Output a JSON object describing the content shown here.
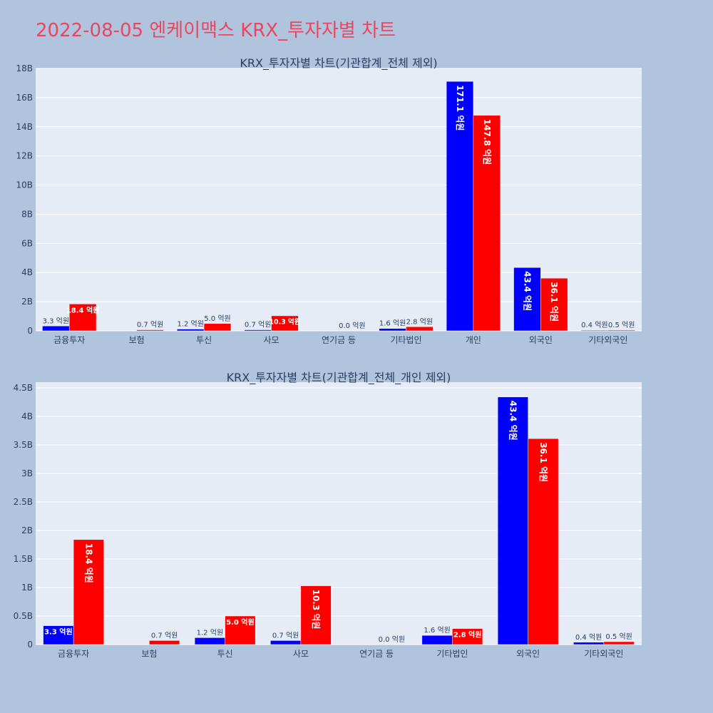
{
  "page": {
    "title": "2022-08-05 엔케이맥스 KRX_투자자별 차트",
    "background": "#b0c4de",
    "title_color": "#e8475f"
  },
  "chart_data": [
    {
      "type": "bar",
      "title": "KRX_투자자별 차트(기관합계_전체 제외)",
      "categories": [
        "금융투자",
        "보험",
        "투신",
        "사모",
        "연기금 등",
        "기타법인",
        "개인",
        "외국인",
        "기타외국인"
      ],
      "ylim": [
        0,
        18000000000
      ],
      "yticks": [
        0,
        2000000000,
        4000000000,
        6000000000,
        8000000000,
        10000000000,
        12000000000,
        14000000000,
        16000000000,
        18000000000
      ],
      "ytick_labels": [
        "0",
        "2B",
        "4B",
        "6B",
        "8B",
        "10B",
        "12B",
        "14B",
        "16B",
        "18B"
      ],
      "grid": true,
      "series": [
        {
          "color": "#0000ff",
          "values": [
            330000000,
            0,
            120000000,
            70000000,
            0,
            160000000,
            17110000000,
            4340000000,
            40000000
          ],
          "labels": [
            "3.3 억원",
            "",
            "1.2 억원",
            "0.7 억원",
            "",
            "1.6 억원",
            "171.1 억원",
            "43.4 억원",
            "0.4 억원"
          ]
        },
        {
          "color": "#ff0000",
          "values": [
            1840000000,
            70000000,
            500000000,
            1030000000,
            0,
            280000000,
            14780000000,
            3610000000,
            50000000
          ],
          "labels": [
            "18.4 억원",
            "0.7 억원",
            "5.0 억원",
            "10.3 억원",
            "0.0 억원",
            "2.8 억원",
            "147.8 억원",
            "36.1 억원",
            "0.5 억원"
          ]
        }
      ]
    },
    {
      "type": "bar",
      "title": "KRX_투자자별 차트(기관합계_전체_개인 제외)",
      "categories": [
        "금융투자",
        "보험",
        "투신",
        "사모",
        "연기금 등",
        "기타법인",
        "외국인",
        "기타외국인"
      ],
      "ylim": [
        0,
        4600000000
      ],
      "yticks": [
        0,
        500000000,
        1000000000,
        1500000000,
        2000000000,
        2500000000,
        3000000000,
        3500000000,
        4000000000,
        4500000000
      ],
      "ytick_labels": [
        "0",
        "0.5B",
        "1B",
        "1.5B",
        "2B",
        "2.5B",
        "3B",
        "3.5B",
        "4B",
        "4.5B"
      ],
      "grid": true,
      "series": [
        {
          "color": "#0000ff",
          "values": [
            330000000,
            0,
            120000000,
            70000000,
            0,
            160000000,
            4340000000,
            40000000
          ],
          "labels": [
            "3.3 억원",
            "",
            "1.2 억원",
            "0.7 억원",
            "",
            "1.6 억원",
            "43.4 억원",
            "0.4 억원"
          ]
        },
        {
          "color": "#ff0000",
          "values": [
            1840000000,
            70000000,
            500000000,
            1030000000,
            0,
            280000000,
            3610000000,
            50000000
          ],
          "labels": [
            "18.4 억원",
            "0.7 억원",
            "5.0 억원",
            "10.3 억원",
            "0.0 억원",
            "2.8 억원",
            "36.1 억원",
            "0.5 억원"
          ]
        }
      ]
    }
  ]
}
